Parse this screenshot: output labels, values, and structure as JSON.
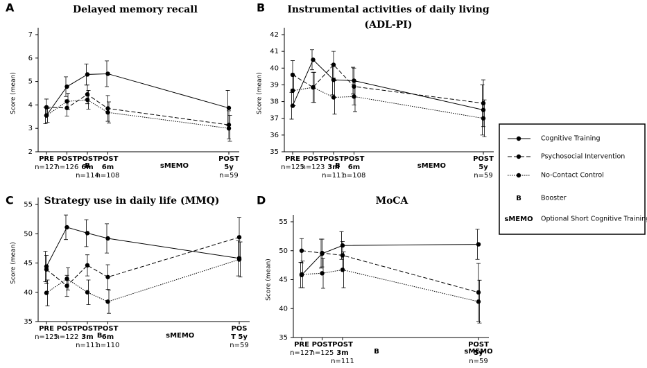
{
  "legend": [
    {
      "style": "solid",
      "label": "Cognitive Training"
    },
    {
      "style": "dashed",
      "label": "Psychosocial Intervention"
    },
    {
      "style": "dotted",
      "label": "No-Contact Control"
    },
    {
      "symbol": "B",
      "label": "Booster"
    },
    {
      "symbol": "sMEMO",
      "label": "Optional Short Cognitive Training"
    }
  ],
  "chart_data": [
    {
      "type": "line",
      "panel": "A",
      "title": "Delayed memory recall",
      "ylabel": "Score (mean)",
      "categories": [
        [
          "PRE",
          "n=127"
        ],
        [
          "POST",
          "n=126"
        ],
        [
          "POST",
          "6m",
          "n=114"
        ],
        [
          "POST",
          "6m",
          "n=108"
        ],
        [
          "POST",
          "5y",
          "n=59"
        ]
      ],
      "ylim": [
        2,
        7
      ],
      "yticks": [
        2,
        3,
        4,
        5,
        6,
        7
      ],
      "annotations": [
        "B",
        "sMEMO"
      ],
      "series": [
        {
          "style": "solid",
          "color": "#000000",
          "values": [
            3.55,
            4.78,
            5.3,
            5.33,
            3.87
          ],
          "errors": [
            0.35,
            0.42,
            0.45,
            0.55,
            0.75
          ]
        },
        {
          "style": "dashed",
          "color": "#000000",
          "values": [
            3.9,
            3.87,
            4.45,
            3.85,
            3.15
          ],
          "errors": [
            0.35,
            0.35,
            0.4,
            0.55,
            0.6
          ]
        },
        {
          "style": "dotted",
          "color": "#000000",
          "values": [
            3.55,
            4.15,
            4.22,
            3.68,
            3.0
          ],
          "errors": [
            0.3,
            0.35,
            0.4,
            0.45,
            0.55
          ]
        }
      ]
    },
    {
      "type": "line",
      "panel": "B",
      "title": "Instrumental activities of daily living",
      "subtitle": "(ADL-PI)",
      "ylabel": "Score (mean)",
      "categories": [
        [
          "PRE",
          "n=125"
        ],
        [
          "POST",
          "n=123"
        ],
        [
          "POST",
          "3m",
          "n=111"
        ],
        [
          "POST",
          "6m",
          "n=108"
        ],
        [
          "POST",
          "5y",
          "n=59"
        ]
      ],
      "ylim": [
        35,
        42
      ],
      "yticks": [
        35,
        36,
        37,
        38,
        39,
        40,
        41,
        42
      ],
      "annotations": [
        "B",
        "sMEMO"
      ],
      "series": [
        {
          "style": "solid",
          "color": "#000000",
          "values": [
            37.75,
            40.5,
            39.3,
            39.25,
            37.5
          ],
          "errors": [
            0.8,
            0.6,
            0.9,
            0.8,
            1.5
          ]
        },
        {
          "style": "dashed",
          "color": "#000000",
          "values": [
            39.6,
            38.85,
            40.2,
            38.9,
            37.9
          ],
          "errors": [
            0.85,
            0.9,
            0.8,
            1.1,
            1.4
          ]
        },
        {
          "style": "dotted",
          "color": "#000000",
          "values": [
            38.65,
            38.85,
            38.25,
            38.3,
            37.0
          ],
          "errors": [
            0.9,
            0.9,
            1.0,
            0.9,
            1.1
          ]
        }
      ]
    },
    {
      "type": "line",
      "panel": "C",
      "title": "Strategy use in daily life (MMQ)",
      "ylabel": "Score (mean)",
      "categories": [
        [
          "PRE",
          "n=125"
        ],
        [
          "POST",
          "n=122"
        ],
        [
          "POST",
          "3m",
          "n=111"
        ],
        [
          "POST",
          "6m",
          "n=110"
        ],
        [
          "POS",
          "T 5y",
          "n=59"
        ]
      ],
      "ylim": [
        35,
        55
      ],
      "yticks": [
        35,
        40,
        45,
        50,
        55
      ],
      "annotations": [
        "B",
        "sMEMO"
      ],
      "series": [
        {
          "style": "solid",
          "color": "#000000",
          "values": [
            44.4,
            51.1,
            50.1,
            49.2,
            45.8
          ],
          "errors": [
            2.6,
            2.1,
            2.3,
            2.5,
            3.0
          ]
        },
        {
          "style": "dashed",
          "color": "#000000",
          "values": [
            43.9,
            41.1,
            44.6,
            42.6,
            49.4
          ],
          "errors": [
            2.4,
            1.8,
            1.8,
            2.1,
            3.4
          ]
        },
        {
          "style": "dotted",
          "color": "#000000",
          "values": [
            39.9,
            42.3,
            40.0,
            38.4,
            45.6
          ],
          "errors": [
            2.2,
            1.9,
            2.1,
            2.0,
            3.0
          ]
        }
      ]
    },
    {
      "type": "line",
      "panel": "D",
      "title": "MoCA",
      "ylabel": "Score (mean)",
      "categories": [
        [
          "PRE",
          "n=127"
        ],
        [
          "POST",
          "n=125"
        ],
        [
          "POST",
          "3m",
          "n=111"
        ],
        [
          "POST",
          "5y",
          "n=59"
        ]
      ],
      "ylim": [
        35,
        55
      ],
      "yticks": [
        35,
        40,
        45,
        50,
        55
      ],
      "annotations": [
        "B",
        "sMEMO"
      ],
      "series": [
        {
          "style": "solid",
          "color": "#000000",
          "values": [
            45.8,
            49.5,
            50.9,
            51.1
          ],
          "errors": [
            2.2,
            2.5,
            2.4,
            2.6
          ]
        },
        {
          "style": "dashed",
          "color": "#000000",
          "values": [
            50.0,
            49.6,
            49.2,
            42.8
          ],
          "errors": [
            2.1,
            2.4,
            2.4,
            5.0
          ]
        },
        {
          "style": "dotted",
          "color": "#000000",
          "values": [
            45.9,
            46.1,
            46.7,
            41.2
          ],
          "errors": [
            2.3,
            2.6,
            3.1,
            3.7
          ]
        }
      ]
    }
  ]
}
